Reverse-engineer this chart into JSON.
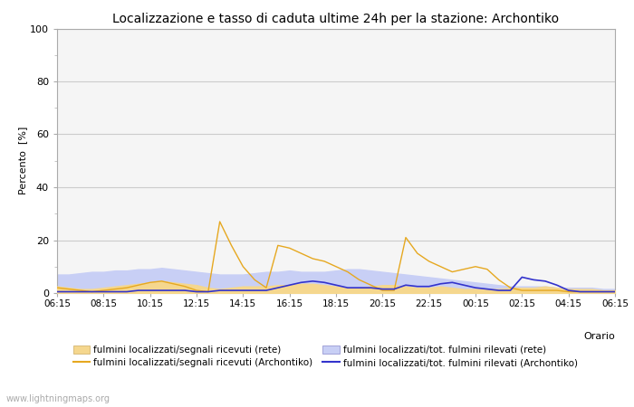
{
  "title": "Localizzazione e tasso di caduta ultime 24h per la stazione: Archontiko",
  "xlabel": "Orario",
  "ylabel": "Percento  [%]",
  "ylim": [
    0,
    100
  ],
  "yticks": [
    0,
    20,
    40,
    60,
    80,
    100
  ],
  "xtick_labels": [
    "06:15",
    "08:15",
    "10:15",
    "12:15",
    "14:15",
    "16:15",
    "18:15",
    "20:15",
    "22:15",
    "00:15",
    "02:15",
    "04:15",
    "06:15"
  ],
  "background_color": "#ffffff",
  "watermark": "www.lightningmaps.org",
  "time_points": [
    0,
    1,
    2,
    3,
    4,
    5,
    6,
    7,
    8,
    9,
    10,
    11,
    12,
    13,
    14,
    15,
    16,
    17,
    18,
    19,
    20,
    21,
    22,
    23,
    24,
    25,
    26,
    27,
    28,
    29,
    30,
    31,
    32,
    33,
    34,
    35,
    36,
    37,
    38,
    39,
    40,
    41,
    42,
    43,
    44,
    45,
    46,
    47,
    48
  ],
  "fill_rete_segnali": [
    2.5,
    2.0,
    1.5,
    1.5,
    2.0,
    2.5,
    3.0,
    3.5,
    4.0,
    4.5,
    4.0,
    3.5,
    3.0,
    2.0,
    1.5,
    2.0,
    2.5,
    2.5,
    2.5,
    3.0,
    3.0,
    3.5,
    3.5,
    3.0,
    2.5,
    2.0,
    2.0,
    2.5,
    3.0,
    3.0,
    2.5,
    2.0,
    2.0,
    2.5,
    2.0,
    1.5,
    1.5,
    1.5,
    1.5,
    2.0,
    2.0,
    2.0,
    2.5,
    2.0,
    1.5,
    1.5,
    1.5,
    1.0,
    1.0
  ],
  "fill_rete_tot": [
    7.0,
    7.0,
    7.5,
    8.0,
    8.0,
    8.5,
    8.5,
    9.0,
    9.0,
    9.5,
    9.0,
    8.5,
    8.0,
    7.5,
    7.0,
    7.0,
    7.0,
    7.5,
    8.0,
    8.0,
    8.5,
    8.0,
    8.0,
    8.0,
    8.5,
    9.0,
    9.0,
    8.5,
    8.0,
    7.5,
    7.0,
    6.5,
    6.0,
    5.5,
    5.0,
    4.5,
    4.0,
    3.5,
    3.0,
    2.5,
    2.5,
    2.5,
    2.5,
    2.0,
    2.0,
    2.0,
    2.0,
    1.5,
    1.5
  ],
  "line_archontiko_segnali": [
    2.0,
    1.5,
    1.0,
    0.5,
    1.0,
    1.5,
    2.0,
    3.0,
    4.0,
    4.5,
    3.5,
    2.5,
    1.0,
    0.5,
    27.0,
    18.0,
    10.0,
    5.0,
    2.0,
    18.0,
    17.0,
    15.0,
    13.0,
    12.0,
    10.0,
    8.0,
    5.0,
    3.0,
    1.0,
    1.0,
    21.0,
    15.0,
    12.0,
    10.0,
    8.0,
    9.0,
    10.0,
    9.0,
    5.0,
    2.0,
    1.0,
    1.0,
    1.0,
    1.0,
    0.5,
    0.5,
    0.5,
    0.5,
    0.5
  ],
  "line_archontiko_tot": [
    0.5,
    0.5,
    0.5,
    0.5,
    0.5,
    0.5,
    0.5,
    1.0,
    1.0,
    1.0,
    1.0,
    1.0,
    0.5,
    0.5,
    1.0,
    1.0,
    1.0,
    1.0,
    1.0,
    2.0,
    3.0,
    4.0,
    4.5,
    4.0,
    3.0,
    2.0,
    2.0,
    2.0,
    1.5,
    1.5,
    3.0,
    2.5,
    2.5,
    3.5,
    4.0,
    3.0,
    2.0,
    1.5,
    1.0,
    1.0,
    6.0,
    5.0,
    4.5,
    3.0,
    1.0,
    0.5,
    0.5,
    0.5,
    0.5
  ],
  "color_fill_segnali": "#f5d78e",
  "color_fill_tot": "#c8cff5",
  "color_line_segnali": "#e6a820",
  "color_line_tot": "#3333cc",
  "color_grid": "#cccccc",
  "color_title": "#000000",
  "color_watermark": "#aaaaaa",
  "legend_fill_segnali_label": "fulmini localizzati/segnali ricevuti (rete)",
  "legend_fill_tot_label": "fulmini localizzati/tot. fulmini rilevati (rete)",
  "legend_line_segnali_label": "fulmini localizzati/segnali ricevuti (Archontiko)",
  "legend_line_tot_label": "fulmini localizzati/tot. fulmini rilevati (Archontiko)"
}
